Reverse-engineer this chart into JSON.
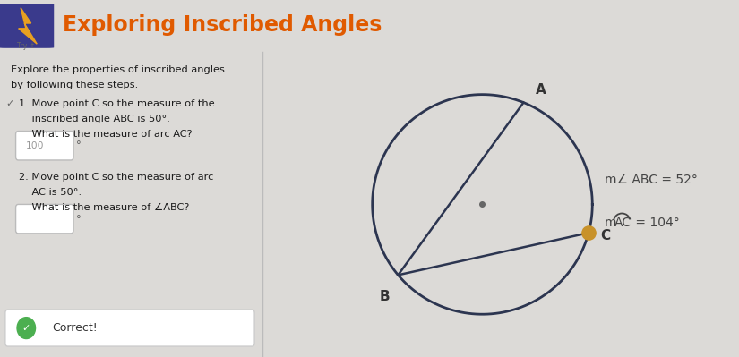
{
  "title": "Exploring Inscribed Angles",
  "title_color": "#E05A00",
  "bg_color": "#DCDAD7",
  "panel_bg": "#ECEAE7",
  "right_panel_bg": "#E4E2DF",
  "header_bg": "#CFCDC9",
  "icon_bg": "#3A3A8C",
  "icon_color": "#E05A00",
  "left_text_lines": [
    "Explore the properties of inscribed angles",
    "by following these steps."
  ],
  "correct_label": "Correct!",
  "right_label1": "m∠ ABC = 52°",
  "circle_color": "#2C3550",
  "line_color": "#2C3550",
  "point_C_color": "#C8922A",
  "step1_answer": "100",
  "font_family": "DejaVu Sans"
}
